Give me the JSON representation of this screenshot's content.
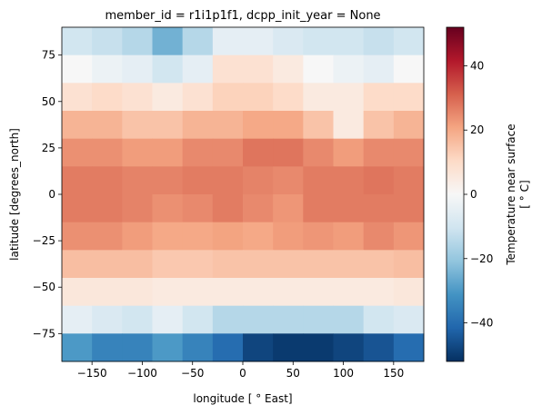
{
  "chart_data": {
    "type": "heatmap",
    "title": "member_id = r1i1p1f1, dcpp_init_year = None",
    "xlabel": "longitude [ ° East]",
    "ylabel": "latitude [degrees_north]",
    "colorbar_label": [
      "Temperature near surface",
      "[ ° C]"
    ],
    "colormap": "RdBu_r",
    "x": [
      -165,
      -135,
      -105,
      -75,
      -45,
      -15,
      15,
      45,
      75,
      105,
      135,
      165
    ],
    "y": [
      82.5,
      67.5,
      52.5,
      37.5,
      22.5,
      7.5,
      -7.5,
      -22.5,
      -37.5,
      -52.5,
      -67.5,
      -82.5
    ],
    "z": [
      [
        -10,
        -12,
        -15,
        -25,
        -15,
        -5,
        -5,
        -8,
        -10,
        -10,
        -12,
        -10
      ],
      [
        0,
        -3,
        -5,
        -10,
        -5,
        8,
        8,
        5,
        0,
        -3,
        -5,
        0
      ],
      [
        8,
        10,
        8,
        5,
        8,
        12,
        12,
        10,
        5,
        5,
        10,
        10
      ],
      [
        18,
        18,
        15,
        15,
        18,
        18,
        20,
        20,
        15,
        5,
        15,
        18
      ],
      [
        24,
        24,
        22,
        22,
        25,
        25,
        28,
        28,
        25,
        22,
        25,
        25
      ],
      [
        27,
        27,
        26,
        26,
        27,
        27,
        26,
        25,
        27,
        27,
        28,
        27
      ],
      [
        27,
        27,
        26,
        24,
        25,
        27,
        25,
        23,
        27,
        27,
        27,
        27
      ],
      [
        24,
        24,
        22,
        20,
        20,
        21,
        20,
        22,
        23,
        22,
        25,
        23
      ],
      [
        16,
        16,
        16,
        14,
        14,
        15,
        15,
        15,
        15,
        15,
        15,
        16
      ],
      [
        6,
        6,
        6,
        5,
        5,
        5,
        5,
        5,
        5,
        5,
        5,
        6
      ],
      [
        -5,
        -8,
        -10,
        -5,
        -10,
        -15,
        -15,
        -15,
        -15,
        -15,
        -10,
        -8
      ],
      [
        -30,
        -35,
        -35,
        -30,
        -35,
        -40,
        -48,
        -50,
        -50,
        -48,
        -45,
        -40
      ]
    ],
    "xlim": [
      -180,
      180
    ],
    "ylim": [
      -90,
      90
    ],
    "xticks": [
      {
        "value": -150,
        "label": "−150"
      },
      {
        "value": -100,
        "label": "−100"
      },
      {
        "value": -50,
        "label": "−50"
      },
      0,
      50,
      100,
      150
    ],
    "yticks": [
      {
        "value": -75,
        "label": "−75"
      },
      {
        "value": -50,
        "label": "−50"
      },
      {
        "value": -25,
        "label": "−25"
      },
      0,
      25,
      50,
      75
    ],
    "clim": [
      -52,
      52
    ],
    "cticks": [
      {
        "value": -40,
        "label": "−40"
      },
      {
        "value": -20,
        "label": "−20"
      },
      0,
      20,
      40
    ]
  }
}
